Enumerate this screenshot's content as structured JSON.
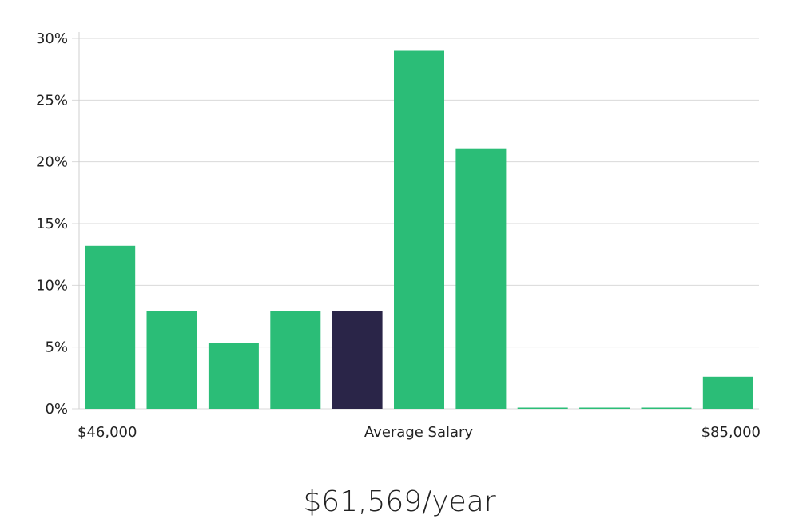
{
  "chart_data": {
    "type": "bar",
    "values": [
      13.2,
      7.9,
      5.3,
      7.9,
      7.9,
      29.0,
      21.1,
      0,
      0,
      0,
      2.6
    ],
    "highlight_index": 4,
    "y_ticks": [
      "0%",
      "5%",
      "10%",
      "15%",
      "20%",
      "25%",
      "30%"
    ],
    "ylim": [
      0,
      30
    ],
    "x_labels": {
      "left": "$46,000",
      "center": "Average Salary",
      "right": "$85,000"
    },
    "colors": {
      "bar": "#2bbd77",
      "highlight": "#2a2548",
      "grid": "#d9d9d9"
    },
    "grid": true
  },
  "summary": {
    "salary": "$61,569/year"
  }
}
